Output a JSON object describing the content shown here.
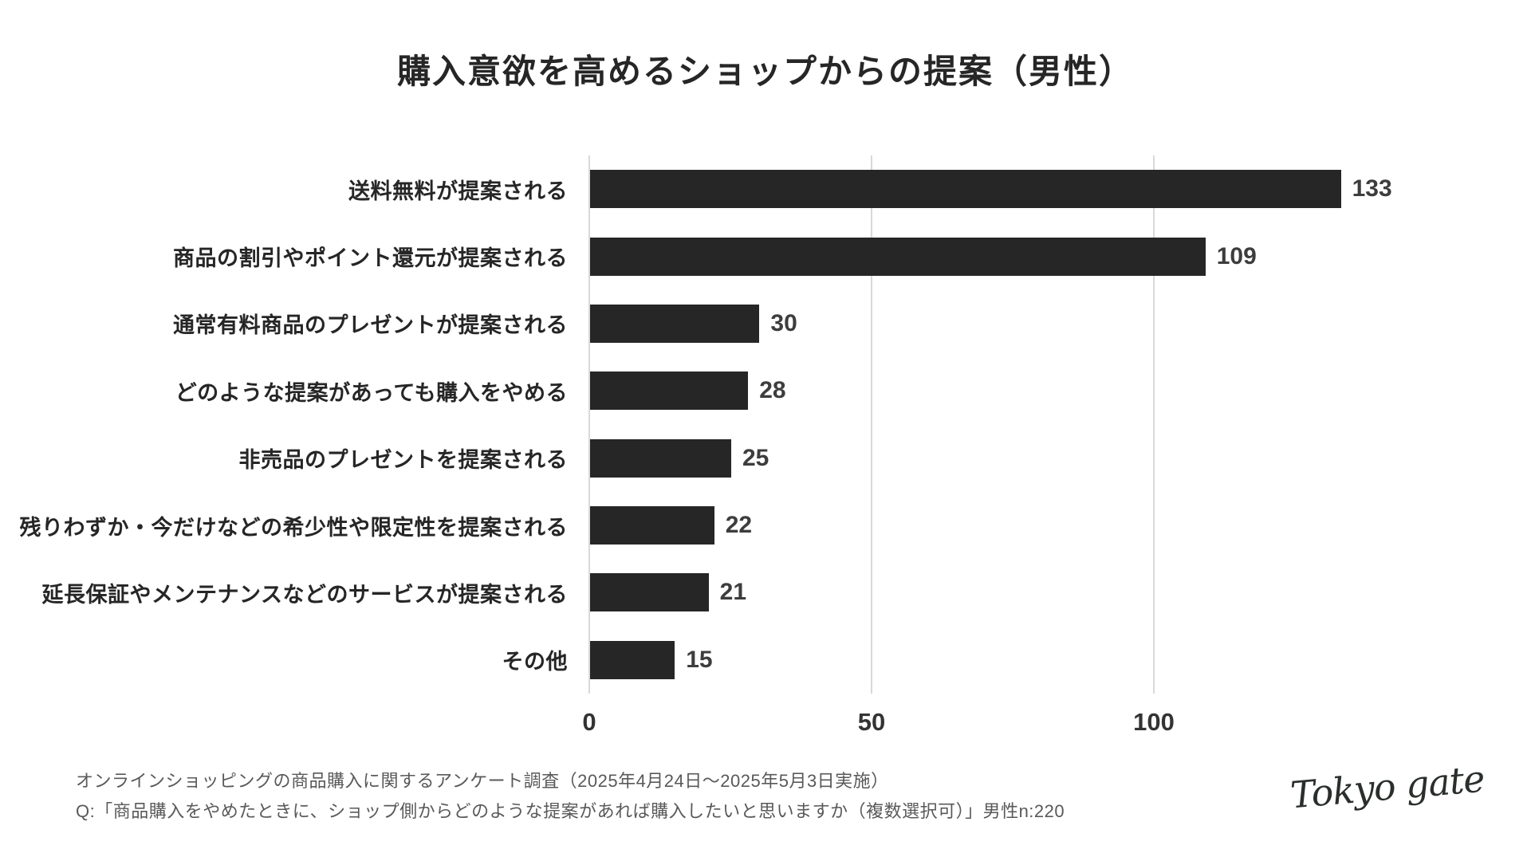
{
  "title": "購入意欲を高めるショップからの提案（男性）",
  "chart_data": {
    "type": "bar",
    "orientation": "horizontal",
    "title": "購入意欲を高めるショップからの提案（男性）",
    "categories": [
      "送料無料が提案される",
      "商品の割引やポイント還元が提案される",
      "通常有料商品のプレゼントが提案される",
      "どのような提案があっても購入をやめる",
      "非売品のプレゼントを提案される",
      "残りわずか・今だけなどの希少性や限定性を提案される",
      "延長保証やメンテナンスなどのサービスが提案される",
      "その他"
    ],
    "values": [
      133,
      109,
      30,
      28,
      25,
      22,
      21,
      15
    ],
    "xlabel": "",
    "ylabel": "",
    "xticks": [
      0,
      50,
      100
    ],
    "xlim": [
      0,
      140
    ],
    "grid": true,
    "legend": "none",
    "bar_color": "#262626",
    "gridline_color": "#d9d9d9"
  },
  "footer": {
    "line1": "オンラインショッピングの商品購入に関するアンケート調査（2025年4月24日～2025年5月3日実施）",
    "line2": "Q:「商品購入をやめたときに、ショップ側からどのような提案があれば購入したいと思いますか（複数選択可）」男性n:220"
  },
  "logo": {
    "text": "Tokyo gate"
  }
}
